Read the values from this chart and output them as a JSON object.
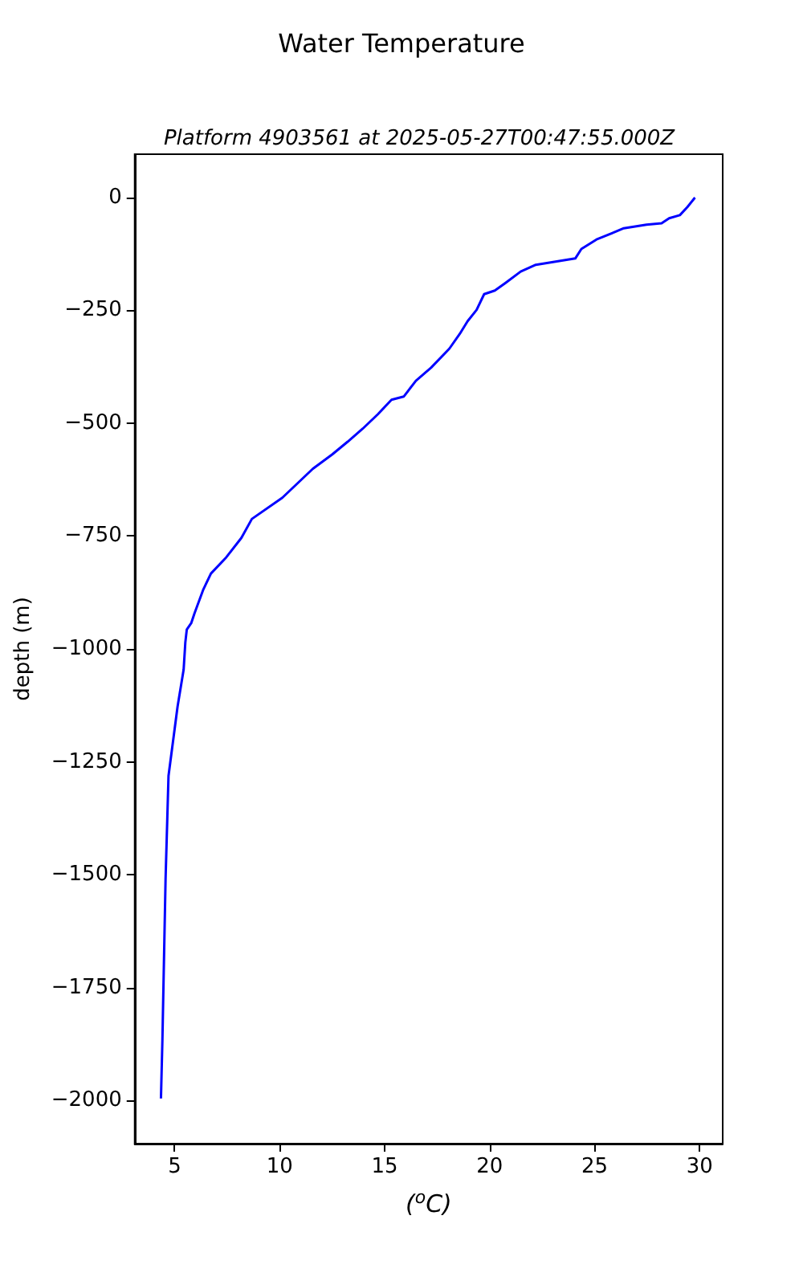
{
  "chart_data": {
    "type": "line",
    "title": "Water Temperature",
    "subtitle": "Platform 4903561 at 2025-05-27T00:47:55.000Z",
    "xlabel": "($^{o}$C)",
    "ylabel": "depth (m)",
    "x": [
      29.78,
      29.42,
      29.06,
      28.55,
      28.19,
      27.47,
      26.39,
      26.03,
      25.52,
      25.09,
      24.37,
      24.08,
      23.14,
      22.2,
      21.48,
      20.76,
      20.25,
      19.74,
      19.38,
      18.95,
      18.58,
      18.08,
      17.21,
      16.49,
      15.91,
      15.33,
      14.68,
      13.96,
      13.24,
      12.51,
      11.58,
      10.13,
      8.68,
      8.18,
      7.46,
      6.73,
      6.37,
      5.94,
      5.79,
      5.58,
      5.51,
      5.43,
      5.14,
      4.71,
      4.57,
      4.42,
      4.35
    ],
    "series": [
      {
        "color": "#0000ff",
        "values": [
          0,
          -21,
          -39,
          -46,
          -57,
          -60,
          -68,
          -75,
          -85,
          -93,
          -114,
          -135,
          -142,
          -149,
          -164,
          -189,
          -206,
          -214,
          -249,
          -274,
          -302,
          -335,
          -377,
          -406,
          -441,
          -448,
          -480,
          -512,
          -541,
          -569,
          -601,
          -665,
          -712,
          -754,
          -797,
          -833,
          -868,
          -922,
          -943,
          -957,
          -986,
          -1046,
          -1128,
          -1281,
          -1509,
          -1865,
          -1996
        ]
      }
    ],
    "xlim": [
      3.1,
      31.1
    ],
    "ylim": [
      -2096,
      96
    ],
    "xticks": [
      5,
      10,
      15,
      20,
      25,
      30
    ],
    "yticks": [
      0,
      -250,
      -500,
      -750,
      -1000,
      -1250,
      -1500,
      -1750,
      -2000
    ],
    "grid": false,
    "marker": "none",
    "line_style": "solid"
  }
}
